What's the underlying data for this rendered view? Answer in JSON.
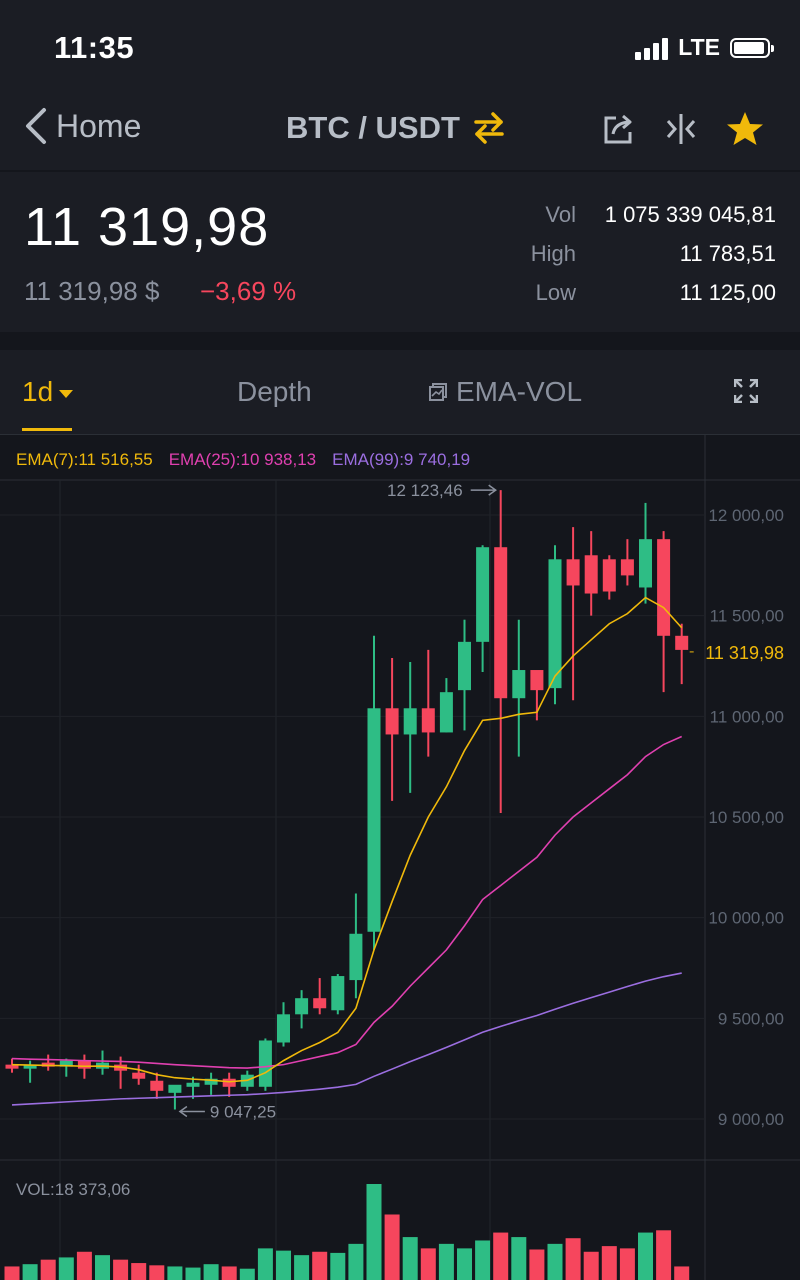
{
  "status_bar": {
    "time": "11:35",
    "network": "LTE"
  },
  "nav": {
    "back_label": "Home",
    "pair": "BTC / USDT"
  },
  "summary": {
    "price": "11 319,98",
    "fiat_price": "11 319,98 $",
    "change": "−3,69 %",
    "stats": [
      {
        "label": "Vol",
        "value": "1 075 339 045,81"
      },
      {
        "label": "High",
        "value": "11 783,51"
      },
      {
        "label": "Low",
        "value": "11 125,00"
      }
    ]
  },
  "tabs": {
    "interval": "1d",
    "depth": "Depth",
    "indicator": "EMA-VOL"
  },
  "ema": {
    "ema7": "EMA(7):11 516,55",
    "ema25": "EMA(25):10 938,13",
    "ema99": "EMA(99):9 740,19"
  },
  "colors": {
    "up": "#2ebd85",
    "down": "#f6465d",
    "accent": "#f0b90b",
    "ema7": "#f0b90b",
    "ema25": "#e040b0",
    "ema99": "#9b6ee0"
  },
  "chart_data": {
    "type": "candlestick",
    "ylim": [
      8850,
      12150
    ],
    "y_ticks": [
      "12 000,00",
      "11 500,00",
      "11 000,00",
      "10 500,00",
      "10 000,00",
      "9 500,00",
      "9 000,00"
    ],
    "y_tick_values": [
      12000,
      11500,
      11000,
      10500,
      10000,
      9500,
      9000
    ],
    "current_price_label": "11 319,98",
    "current_price": 11319.98,
    "max_label": "12 123,46",
    "max_value": 12123.46,
    "min_label": "9 047,25",
    "min_value": 9047.25,
    "candles": [
      [
        9270,
        9300,
        9230,
        9250
      ],
      [
        9250,
        9290,
        9180,
        9270
      ],
      [
        9280,
        9320,
        9240,
        9260
      ],
      [
        9260,
        9300,
        9210,
        9290
      ],
      [
        9290,
        9320,
        9200,
        9250
      ],
      [
        9250,
        9340,
        9220,
        9280
      ],
      [
        9270,
        9310,
        9150,
        9240
      ],
      [
        9230,
        9270,
        9170,
        9200
      ],
      [
        9190,
        9230,
        9100,
        9140
      ],
      [
        9130,
        9160,
        9047.25,
        9170
      ],
      [
        9160,
        9210,
        9100,
        9180
      ],
      [
        9170,
        9230,
        9120,
        9200
      ],
      [
        9200,
        9230,
        9110,
        9160
      ],
      [
        9160,
        9240,
        9140,
        9220
      ],
      [
        9160,
        9400,
        9140,
        9390
      ],
      [
        9380,
        9580,
        9360,
        9520
      ],
      [
        9520,
        9640,
        9450,
        9600
      ],
      [
        9600,
        9700,
        9520,
        9550
      ],
      [
        9540,
        9720,
        9520,
        9710
      ],
      [
        9690,
        10120,
        9600,
        9920
      ],
      [
        9930,
        11400,
        9840,
        11040
      ],
      [
        11040,
        11290,
        10580,
        10910
      ],
      [
        10910,
        11270,
        10620,
        11040
      ],
      [
        11040,
        11330,
        10800,
        10920
      ],
      [
        10920,
        11190,
        10920,
        11120
      ],
      [
        11130,
        11480,
        10930,
        11370
      ],
      [
        11370,
        11850,
        11220,
        11840
      ],
      [
        11840,
        12123.46,
        10520,
        11090
      ],
      [
        11090,
        11480,
        10800,
        11230
      ],
      [
        11230,
        11200,
        10980,
        11130
      ],
      [
        11140,
        11850,
        11060,
        11780
      ],
      [
        11780,
        11940,
        11080,
        11650
      ],
      [
        11800,
        11920,
        11500,
        11610
      ],
      [
        11780,
        11800,
        11580,
        11620
      ],
      [
        11780,
        11880,
        11650,
        11700
      ],
      [
        11640,
        12060,
        11560,
        11880
      ],
      [
        11880,
        11920,
        11120,
        11400
      ],
      [
        11400,
        11460,
        11160,
        11330
      ]
    ],
    "ema7": [
      9270,
      9268,
      9266,
      9265,
      9262,
      9263,
      9258,
      9245,
      9220,
      9205,
      9198,
      9193,
      9185,
      9192,
      9230,
      9290,
      9340,
      9380,
      9430,
      9550,
      9840,
      10080,
      10310,
      10500,
      10650,
      10830,
      10980,
      10990,
      11010,
      11020,
      11200,
      11300,
      11380,
      11460,
      11510,
      11590,
      11540,
      11440
    ],
    "ema25": [
      9300,
      9297,
      9295,
      9293,
      9290,
      9288,
      9286,
      9282,
      9276,
      9270,
      9265,
      9260,
      9255,
      9253,
      9260,
      9270,
      9290,
      9310,
      9330,
      9370,
      9480,
      9560,
      9660,
      9750,
      9840,
      9960,
      10090,
      10160,
      10230,
      10300,
      10410,
      10500,
      10570,
      10640,
      10710,
      10800,
      10860,
      10900
    ],
    "ema99": [
      9070,
      9075,
      9080,
      9085,
      9090,
      9095,
      9100,
      9103,
      9106,
      9109,
      9112,
      9115,
      9118,
      9121,
      9126,
      9132,
      9140,
      9148,
      9158,
      9172,
      9212,
      9248,
      9285,
      9320,
      9356,
      9393,
      9431,
      9460,
      9488,
      9514,
      9545,
      9575,
      9603,
      9630,
      9658,
      9685,
      9707,
      9725
    ]
  },
  "volume": {
    "label": "VOL:18 373,06",
    "values": [
      12,
      14,
      18,
      20,
      25,
      22,
      18,
      15,
      13,
      12,
      11,
      14,
      12,
      10,
      28,
      26,
      22,
      25,
      24,
      32,
      85,
      58,
      38,
      28,
      32,
      28,
      35,
      42,
      38,
      27,
      32,
      37,
      25,
      30,
      28,
      42,
      44,
      12
    ]
  }
}
